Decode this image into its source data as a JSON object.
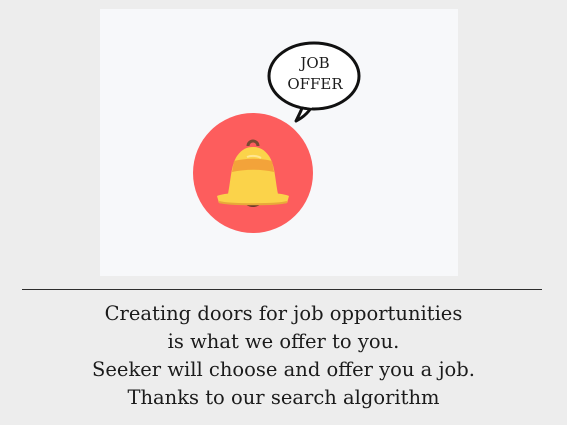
{
  "hero": {
    "bubble_line1": "JOB",
    "bubble_line2": "OFFER",
    "icon": "bell-icon",
    "colors": {
      "circle": "#fd5d5d",
      "bell": "#fbd34a",
      "band": "#f3a33a",
      "clapper": "#6d3a2a",
      "card": "#f7f8fa",
      "page": "#ededed"
    }
  },
  "tagline": {
    "line1": "Creating doors for job opportunities",
    "line2": "is what we offer to you.",
    "line3": "Seeker will choose and offer you a job.",
    "line4": "Thanks to our search algorithm"
  }
}
